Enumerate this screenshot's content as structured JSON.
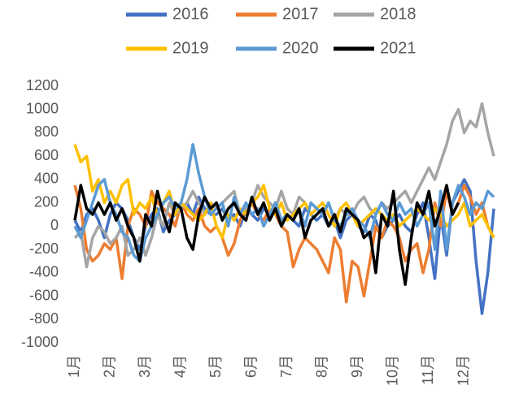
{
  "chart_data": {
    "type": "line",
    "categories": [
      "1月",
      null,
      null,
      null,
      null,
      null,
      "2月",
      null,
      null,
      null,
      null,
      null,
      "3月",
      null,
      null,
      null,
      null,
      null,
      "4月",
      null,
      null,
      null,
      null,
      null,
      "5月",
      null,
      null,
      null,
      null,
      null,
      "6月",
      null,
      null,
      null,
      null,
      null,
      "7月",
      null,
      null,
      null,
      null,
      null,
      "8月",
      null,
      null,
      null,
      null,
      null,
      "9月",
      null,
      null,
      null,
      null,
      null,
      "10月",
      null,
      null,
      null,
      null,
      null,
      "11月",
      null,
      null,
      null,
      null,
      null,
      "12月",
      null,
      null,
      null,
      null,
      null
    ],
    "ylim": [
      -1000,
      1200
    ],
    "yticks": [
      -1000,
      -800,
      -600,
      -400,
      -200,
      0,
      200,
      400,
      600,
      800,
      1000,
      1200
    ],
    "series": [
      {
        "name": "2016",
        "color": "#4472c4",
        "values": [
          50,
          -50,
          100,
          150,
          50,
          -100,
          100,
          200,
          150,
          50,
          -100,
          -200,
          0,
          100,
          150,
          -50,
          50,
          100,
          150,
          200,
          100,
          250,
          150,
          100,
          100,
          150,
          50,
          100,
          0,
          150,
          100,
          50,
          150,
          100,
          200,
          50,
          100,
          50,
          0,
          150,
          100,
          50,
          100,
          0,
          50,
          -100,
          50,
          100,
          0,
          -50,
          100,
          50,
          -100,
          0,
          50,
          100,
          0,
          -50,
          100,
          200,
          -100,
          -450,
          100,
          -250,
          200,
          300,
          400,
          300,
          -300,
          -750,
          -400,
          150
        ]
      },
      {
        "name": "2017",
        "color": "#ed7d31",
        "values": [
          350,
          150,
          -200,
          -300,
          -250,
          -150,
          -200,
          -100,
          -450,
          0,
          150,
          100,
          0,
          300,
          200,
          150,
          100,
          0,
          200,
          100,
          50,
          150,
          0,
          -50,
          0,
          -100,
          -250,
          -150,
          50,
          150,
          200,
          100,
          50,
          150,
          100,
          0,
          -50,
          -350,
          -200,
          -100,
          -150,
          -200,
          -300,
          -400,
          -100,
          -200,
          -650,
          -300,
          -350,
          -600,
          -300,
          0,
          -100,
          50,
          0,
          -100,
          -300,
          -200,
          -150,
          -400,
          -200,
          200,
          0,
          300,
          100,
          200,
          350,
          250,
          100,
          200,
          0,
          -100
        ]
      },
      {
        "name": "2018",
        "color": "#a5a5a5",
        "values": [
          -100,
          -50,
          -350,
          -100,
          0,
          -50,
          -150,
          -100,
          0,
          -250,
          -200,
          -100,
          -250,
          -100,
          100,
          0,
          200,
          100,
          150,
          200,
          300,
          200,
          100,
          200,
          150,
          200,
          250,
          300,
          100,
          150,
          200,
          350,
          250,
          200,
          150,
          300,
          150,
          100,
          250,
          200,
          100,
          150,
          100,
          200,
          50,
          150,
          100,
          100,
          200,
          250,
          150,
          100,
          200,
          150,
          200,
          250,
          300,
          200,
          300,
          400,
          500,
          400,
          550,
          700,
          900,
          1000,
          800,
          900,
          850,
          1050,
          800,
          600
        ]
      },
      {
        "name": "2019",
        "color": "#ffc000",
        "values": [
          700,
          550,
          600,
          300,
          400,
          200,
          300,
          200,
          350,
          400,
          100,
          200,
          150,
          250,
          100,
          200,
          300,
          100,
          200,
          150,
          100,
          50,
          100,
          200,
          0,
          -100,
          100,
          50,
          150,
          100,
          200,
          250,
          350,
          150,
          100,
          200,
          50,
          100,
          150,
          200,
          100,
          150,
          200,
          100,
          0,
          150,
          200,
          100,
          0,
          50,
          100,
          150,
          100,
          50,
          100,
          0,
          50,
          100,
          150,
          100,
          50,
          150,
          100,
          0,
          50,
          100,
          200,
          0,
          50,
          100,
          0,
          -100
        ]
      },
      {
        "name": "2020",
        "color": "#5b9bd5",
        "values": [
          0,
          -100,
          50,
          200,
          350,
          400,
          200,
          100,
          -50,
          -100,
          -250,
          -300,
          -100,
          0,
          100,
          200,
          250,
          150,
          200,
          400,
          700,
          450,
          250,
          100,
          150,
          200,
          0,
          250,
          100,
          200,
          100,
          150,
          0,
          100,
          200,
          50,
          100,
          50,
          150,
          0,
          200,
          150,
          100,
          200,
          50,
          0,
          100,
          150,
          50,
          0,
          -100,
          100,
          200,
          100,
          50,
          200,
          100,
          150,
          0,
          100,
          200,
          -200,
          300,
          -200,
          200,
          350,
          250,
          100,
          200,
          150,
          300,
          250
        ]
      },
      {
        "name": "2021",
        "color": "#000000",
        "values": [
          50,
          350,
          150,
          100,
          200,
          100,
          200,
          50,
          150,
          0,
          -100,
          -300,
          100,
          0,
          300,
          100,
          -50,
          200,
          150,
          -100,
          -200,
          100,
          250,
          150,
          200,
          50,
          150,
          200,
          100,
          50,
          250,
          100,
          200,
          50,
          150,
          0,
          100,
          50,
          150,
          -100,
          50,
          100,
          150,
          0,
          100,
          -50,
          150,
          100,
          50,
          -100,
          -50,
          -400,
          100,
          0,
          300,
          -200,
          -500,
          -100,
          200,
          100,
          300,
          0,
          150,
          350,
          100,
          200,
          null,
          null,
          null,
          null,
          null,
          null
        ]
      }
    ]
  }
}
